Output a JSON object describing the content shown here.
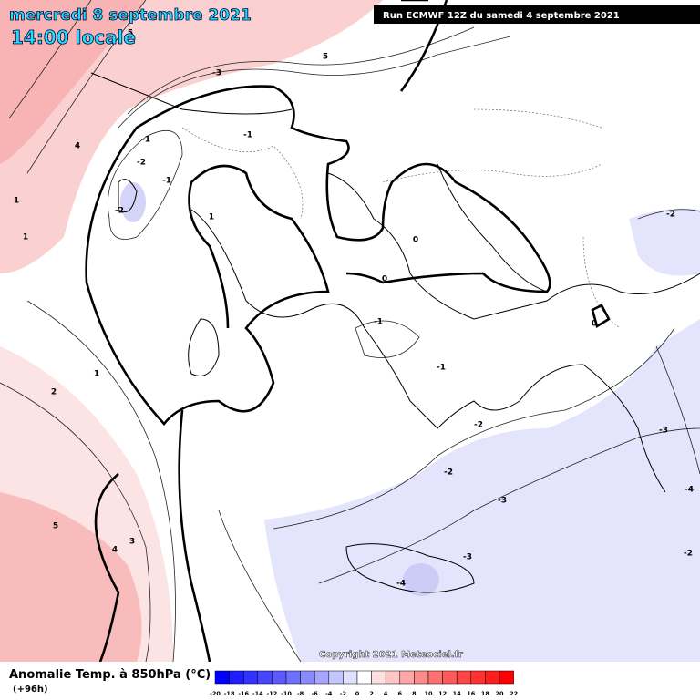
{
  "header": {
    "date": "mercredi 8 septembre 2021",
    "time": "14:00 locale",
    "run": "Run ECMWF 12Z du samedi 4 septembre 2021"
  },
  "map": {
    "copyright": "Copyright 2021 Meteociel.fr",
    "contour_labels": [
      "-3",
      "5",
      "5",
      "4",
      "-1",
      "-2",
      "-1",
      "-2",
      "1",
      "1",
      "1",
      "-1",
      "0",
      "0",
      "-1",
      "-1",
      "0",
      "-2",
      "-2",
      "-2",
      "-3",
      "-3",
      "-4",
      "-3",
      "-4",
      "-2",
      "1",
      "2",
      "5",
      "4",
      "3"
    ]
  },
  "legend": {
    "title": "Anomalie Temp. à 850hPa (°C)",
    "lead": "(+96h)",
    "ticks": [
      "-20",
      "-18",
      "-16",
      "-14",
      "-12",
      "-10",
      "-8",
      "-6",
      "-4",
      "-2",
      "0",
      "2",
      "4",
      "6",
      "8",
      "10",
      "12",
      "14",
      "16",
      "18",
      "20",
      "22"
    ],
    "colors": [
      "#0000ff",
      "#1e1eff",
      "#3232ff",
      "#4646ff",
      "#5a5aff",
      "#7070ff",
      "#8a8aff",
      "#a6a6ff",
      "#c4c4ff",
      "#e0e0ff",
      "#ffffff",
      "#ffe0e0",
      "#ffc4c4",
      "#ffa6a6",
      "#ff8a8a",
      "#ff7070",
      "#ff5a5a",
      "#ff4646",
      "#ff3232",
      "#ff1e1e",
      "#ff0000"
    ]
  }
}
